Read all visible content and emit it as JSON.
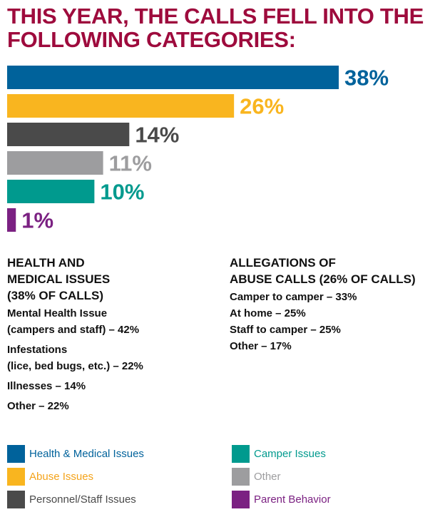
{
  "title": {
    "line1": "THIS YEAR, THE CALLS FELL INTO THE",
    "line2": "FOLLOWING CATEGORIES:"
  },
  "chart_data": {
    "type": "bar",
    "orientation": "horizontal",
    "title": "THIS YEAR, THE CALLS FELL INTO THE FOLLOWING CATEGORIES:",
    "categories": [
      "Health & Medical Issues",
      "Abuse Issues",
      "Personnel/Staff Issues",
      "Other",
      "Camper Issues",
      "Parent Behavior"
    ],
    "values": [
      38,
      26,
      14,
      11,
      10,
      1
    ],
    "labels": [
      "38%",
      "26%",
      "14%",
      "11%",
      "10%",
      "1%"
    ],
    "colors": [
      "#00629b",
      "#f9b51f",
      "#4a4a4a",
      "#9d9d9f",
      "#009a8e",
      "#7b2182"
    ],
    "unit": "%",
    "xlim": [
      0,
      38
    ],
    "grid": false,
    "legend_position": "bottom"
  },
  "health": {
    "heading": [
      "HEALTH AND",
      "MEDICAL ISSUES",
      "(38% OF CALLS)"
    ],
    "items": [
      [
        "Mental Health Issue",
        "(campers and staff) – 42%"
      ],
      [
        "Infestations",
        "(lice, bed bugs, etc.) – 22%"
      ],
      [
        "Illnesses – 14%"
      ],
      [
        "Other – 22%"
      ]
    ]
  },
  "abuse": {
    "heading": [
      "ALLEGATIONS OF",
      "ABUSE CALLS (26% OF CALLS)"
    ],
    "items": [
      "Camper to camper – 33%",
      "At home – 25%",
      "Staff to camper – 25%",
      "Other – 17%"
    ]
  },
  "legend": [
    {
      "label": "Health & Medical Issues",
      "color": "#00629b",
      "icon": "square-swatch"
    },
    {
      "label": "Abuse Issues",
      "color": "#f9b51f",
      "icon": "square-swatch"
    },
    {
      "label": "Personnel/Staff Issues",
      "color": "#4a4a4a",
      "icon": "square-swatch"
    },
    {
      "label": "Camper Issues",
      "color": "#009a8e",
      "icon": "square-swatch"
    },
    {
      "label": "Other",
      "color": "#9d9d9f",
      "icon": "square-swatch"
    },
    {
      "label": "Parent Behavior",
      "color": "#7b2182",
      "icon": "square-swatch"
    }
  ]
}
